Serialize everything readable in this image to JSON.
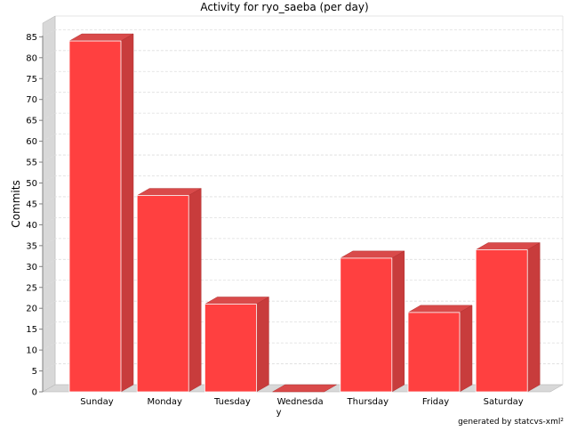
{
  "chart_data": {
    "type": "bar",
    "title": "Activity for ryo_saeba (per day)",
    "xlabel": "",
    "ylabel": "Commits",
    "categories": [
      "Sunday",
      "Monday",
      "Tuesday",
      "Wednesday",
      "Thursday",
      "Friday",
      "Saturday"
    ],
    "category_display": [
      "Sunday",
      "Monday",
      "Tuesday",
      "Wednesda\ny",
      "Thursday",
      "Friday",
      "Saturday"
    ],
    "values": [
      84,
      47,
      21,
      0,
      32,
      19,
      34
    ],
    "ylim": [
      0,
      87
    ],
    "yticks": [
      0,
      5,
      10,
      15,
      20,
      25,
      30,
      35,
      40,
      45,
      50,
      55,
      60,
      65,
      70,
      75,
      80,
      85
    ],
    "grid": true,
    "legend": "none",
    "bar_color": "#ff4040",
    "bar_side_color": "#c83c3c",
    "bar_top_color": "#d94a4a",
    "footer": "generated by statcvs-xml²"
  }
}
